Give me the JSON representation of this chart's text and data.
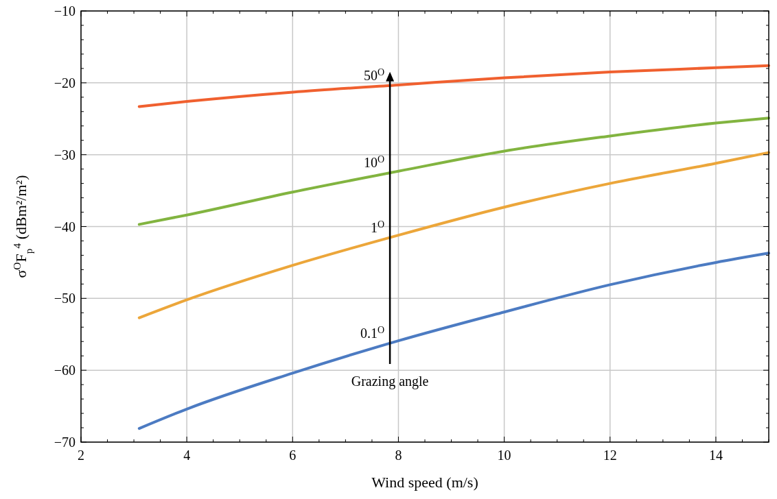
{
  "chart_data": {
    "type": "line",
    "xlabel": "Wind speed (m/s)",
    "ylabel": "σ$^{O}$F$_{p}$$^{4}$ (dBm²/m²)",
    "x": [
      3.1,
      4,
      6,
      8,
      10,
      12,
      14,
      15
    ],
    "series": [
      {
        "color": "#f0602f",
        "values": [
          -23.3,
          -22.6,
          -21.3,
          -20.3,
          -19.3,
          -18.5,
          -17.9,
          -17.6
        ]
      },
      {
        "color": "#82b440",
        "values": [
          -39.7,
          -38.4,
          -35.2,
          -32.3,
          -29.5,
          -27.4,
          -25.6,
          -24.9
        ]
      },
      {
        "color": "#eca63a",
        "values": [
          -52.7,
          -50.2,
          -45.4,
          -41.2,
          -37.3,
          -34.0,
          -31.2,
          -29.7
        ]
      },
      {
        "color": "#4c7bc2",
        "values": [
          -68.1,
          -65.4,
          -60.4,
          -55.9,
          -51.9,
          -48.1,
          -45.0,
          -43.7
        ]
      }
    ],
    "xlim": [
      2,
      15
    ],
    "ylim": [
      -70,
      -10
    ],
    "xticks": [
      2,
      4,
      6,
      8,
      10,
      12,
      14
    ],
    "yticks": [
      -70,
      -60,
      -50,
      -40,
      -30,
      -20,
      -10
    ],
    "grid": true,
    "marker": "none",
    "line_style": "solid",
    "annotations": [
      "50$^{O}$",
      "10$^{O}$",
      "1$^{O}$",
      "0.1$^{O}$",
      "Grazing angle"
    ]
  }
}
